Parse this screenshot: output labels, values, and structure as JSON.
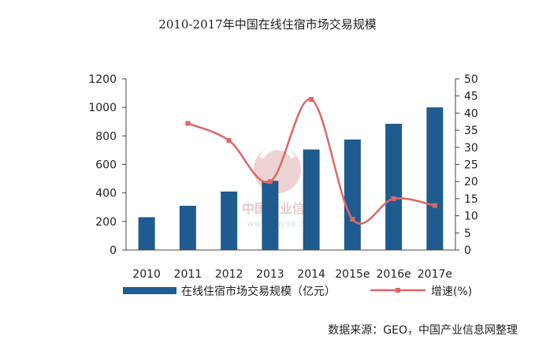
{
  "chart_data": {
    "type": "bar",
    "title": "2010-2017年中国在线住宿市场交易规模",
    "categories": [
      "2010",
      "2011",
      "2012",
      "2013",
      "2014",
      "2015e",
      "2016e",
      "2017e"
    ],
    "series": [
      {
        "name": "在线住宿市场交易规模（亿元）",
        "type": "bar",
        "axis": "left",
        "values": [
          230,
          310,
          410,
          485,
          705,
          775,
          885,
          1000
        ],
        "color": "#1f5b8e"
      },
      {
        "name": "增速(%)",
        "type": "line",
        "axis": "right",
        "values": [
          null,
          37,
          32,
          20,
          44,
          9,
          15,
          13
        ],
        "color": "#e06666"
      }
    ],
    "y_left": {
      "min": 0,
      "max": 1200,
      "ticks": [
        0,
        200,
        400,
        600,
        800,
        1000,
        1200
      ]
    },
    "y_right": {
      "min": 0,
      "max": 50,
      "ticks": [
        0,
        5,
        10,
        15,
        20,
        25,
        30,
        35,
        40,
        45,
        50
      ]
    },
    "grid": false,
    "legend_position": "bottom"
  },
  "watermark": {
    "cn": "中国产业信息",
    "url": "www.chyxx.com"
  },
  "source": "数据来源：GEO，中国产业信息网整理"
}
